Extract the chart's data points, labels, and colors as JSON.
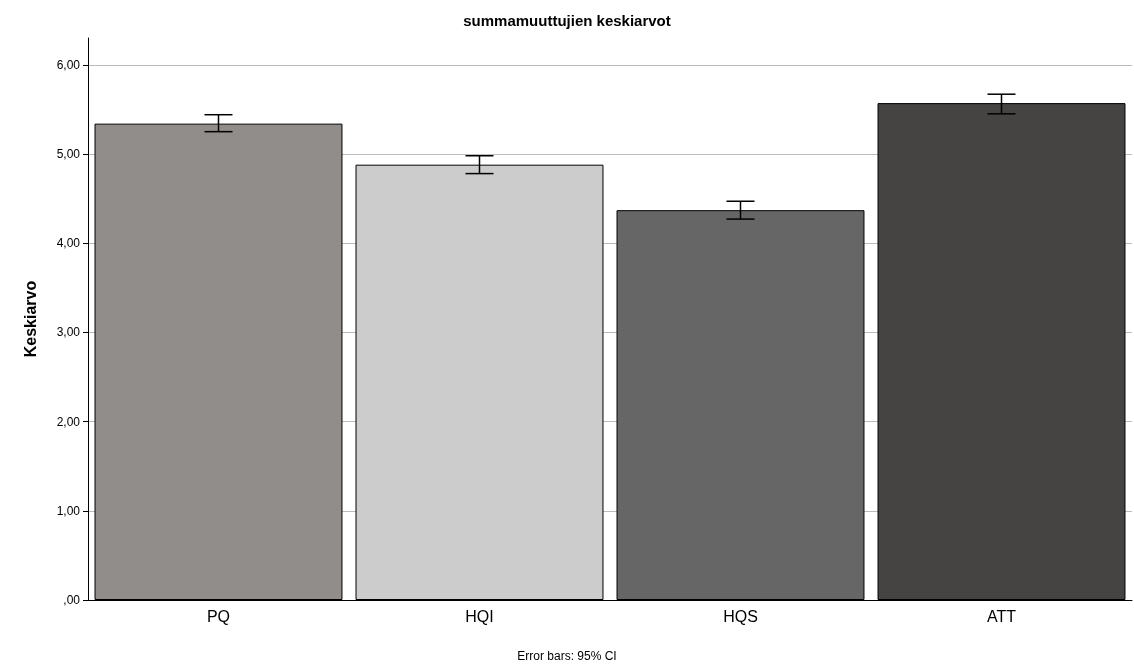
{
  "chart_data": {
    "type": "bar",
    "title": "summamuuttujien keskiarvot",
    "ylabel": "Keskiarvo",
    "categories": [
      "PQ",
      "HQI",
      "HQS",
      "ATT"
    ],
    "values": [
      5.34,
      4.88,
      4.37,
      5.57
    ],
    "colors": [
      "#918d8b",
      "#cccccc",
      "#666666",
      "#464442"
    ],
    "errors": [
      [
        5.25,
        5.44
      ],
      [
        4.78,
        4.98
      ],
      [
        4.27,
        4.47
      ],
      [
        5.45,
        5.67
      ]
    ],
    "ylim": [
      0,
      6.3
    ],
    "yticks": [
      {
        "value": 0,
        "label": ",00"
      },
      {
        "value": 1,
        "label": "1,00"
      },
      {
        "value": 2,
        "label": "2,00"
      },
      {
        "value": 3,
        "label": "3,00"
      },
      {
        "value": 4,
        "label": "4,00"
      },
      {
        "value": 5,
        "label": "5,00"
      },
      {
        "value": 6,
        "label": "6,00"
      }
    ],
    "grid": "y",
    "annotations": [
      "Error bars: 95% CI"
    ]
  }
}
